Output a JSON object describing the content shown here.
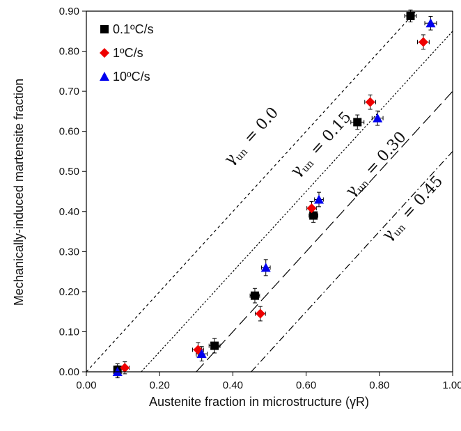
{
  "chart_data": {
    "type": "scatter",
    "xlabel": "Austenite fraction in microstructure (γR)",
    "ylabel": "Mechanically-induced martensite fraction",
    "xlim": [
      0,
      1
    ],
    "ylim": [
      0,
      0.9
    ],
    "x_ticks": [
      "0.00",
      "0.20",
      "0.40",
      "0.60",
      "0.80",
      "1.00"
    ],
    "y_ticks": [
      "0.00",
      "0.10",
      "0.20",
      "0.30",
      "0.40",
      "0.50",
      "0.60",
      "0.70",
      "0.80",
      "0.90"
    ],
    "grid": false,
    "legend_position": "top-left",
    "series": [
      {
        "name": "0.1ºC/s",
        "marker": "square",
        "color": "#000000",
        "points": [
          {
            "x": 0.085,
            "y": 0.005,
            "xerr": 0.01,
            "yerr": 0.015
          },
          {
            "x": 0.35,
            "y": 0.065,
            "xerr": 0.015,
            "yerr": 0.018
          },
          {
            "x": 0.46,
            "y": 0.19,
            "xerr": 0.013,
            "yerr": 0.018
          },
          {
            "x": 0.62,
            "y": 0.39,
            "xerr": 0.012,
            "yerr": 0.017
          },
          {
            "x": 0.74,
            "y": 0.623,
            "xerr": 0.018,
            "yerr": 0.018
          },
          {
            "x": 0.885,
            "y": 0.888,
            "xerr": 0.016,
            "yerr": 0.015
          }
        ]
      },
      {
        "name": "1ºC/s",
        "marker": "diamond",
        "color": "#ee0000",
        "points": [
          {
            "x": 0.105,
            "y": 0.01,
            "xerr": 0.012,
            "yerr": 0.015
          },
          {
            "x": 0.305,
            "y": 0.055,
            "xerr": 0.015,
            "yerr": 0.018
          },
          {
            "x": 0.475,
            "y": 0.145,
            "xerr": 0.014,
            "yerr": 0.018
          },
          {
            "x": 0.615,
            "y": 0.408,
            "xerr": 0.013,
            "yerr": 0.017
          },
          {
            "x": 0.775,
            "y": 0.673,
            "xerr": 0.015,
            "yerr": 0.018
          },
          {
            "x": 0.92,
            "y": 0.823,
            "xerr": 0.016,
            "yerr": 0.018
          }
        ]
      },
      {
        "name": "10ºC/s",
        "marker": "triangle",
        "color": "#0000ee",
        "points": [
          {
            "x": 0.085,
            "y": 0.0,
            "xerr": 0.01,
            "yerr": 0.015
          },
          {
            "x": 0.315,
            "y": 0.045,
            "xerr": 0.015,
            "yerr": 0.018
          },
          {
            "x": 0.49,
            "y": 0.26,
            "xerr": 0.012,
            "yerr": 0.02
          },
          {
            "x": 0.635,
            "y": 0.43,
            "xerr": 0.012,
            "yerr": 0.018
          },
          {
            "x": 0.795,
            "y": 0.633,
            "xerr": 0.015,
            "yerr": 0.018
          },
          {
            "x": 0.94,
            "y": 0.87,
            "xerr": 0.016,
            "yerr": 0.017
          }
        ]
      }
    ],
    "reference_lines": [
      {
        "gamma_un": 0.0,
        "label_symbol": "γ",
        "label_sub": "un",
        "label_text": "= 0.0",
        "dash": "short-dash"
      },
      {
        "gamma_un": 0.15,
        "label_symbol": "γ",
        "label_sub": "un",
        "label_text": "= 0.15",
        "dash": "dot"
      },
      {
        "gamma_un": 0.3,
        "label_symbol": "γ",
        "label_sub": "un",
        "label_text": "= 0.30",
        "dash": "long-dash"
      },
      {
        "gamma_un": 0.45,
        "label_symbol": "γ",
        "label_sub": "un",
        "label_text": "= 0.45",
        "dash": "dash-dot"
      }
    ]
  }
}
